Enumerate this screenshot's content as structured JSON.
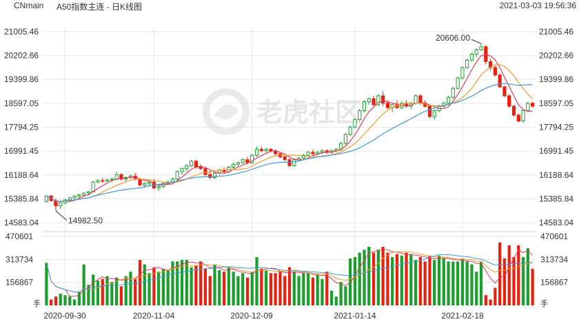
{
  "header": {
    "symbol": "CNmain",
    "title": "A50指数主连 - 日K线图",
    "datetime": "2021-03-03 19:56:36"
  },
  "watermark": {
    "logo_icon": "tiger-logo-icon",
    "text": "老虎社区"
  },
  "colors": {
    "up": "#1a9e2c",
    "down": "#e8210e",
    "ma5": "#e8375a",
    "ma10": "#f09a2c",
    "ma20": "#3d9ad6",
    "grid": "#e6e6e6",
    "text": "#333333"
  },
  "chart_data": [
    {
      "type": "candlestick",
      "y_ticks": [
        21005.46,
        20202.66,
        19399.86,
        18597.05,
        17794.25,
        16991.45,
        16188.64,
        15385.84,
        14583.04
      ],
      "ylim": [
        14583.04,
        21005.46
      ],
      "x_tick_labels": [
        "2020-09-30",
        "2020-11-04",
        "2020-12-09",
        "2021-01-14",
        "2021-02-18"
      ],
      "annotations": [
        {
          "label": "20606.00",
          "kind": "high"
        },
        {
          "label": "14982.50",
          "kind": "low"
        }
      ],
      "series": [
        {
          "name": "MA5",
          "values": []
        },
        {
          "name": "MA10",
          "values": []
        },
        {
          "name": "MA20",
          "values": []
        }
      ],
      "candles": [
        {
          "o": 15300,
          "h": 15500,
          "l": 15250,
          "c": 15480
        },
        {
          "o": 15480,
          "h": 15520,
          "l": 15300,
          "c": 15320
        },
        {
          "o": 15320,
          "h": 15400,
          "l": 14982.5,
          "c": 15150
        },
        {
          "o": 15150,
          "h": 15300,
          "l": 15050,
          "c": 15250
        },
        {
          "o": 15250,
          "h": 15380,
          "l": 15200,
          "c": 15350
        },
        {
          "o": 15350,
          "h": 15450,
          "l": 15300,
          "c": 15420
        },
        {
          "o": 15420,
          "h": 15500,
          "l": 15380,
          "c": 15480
        },
        {
          "o": 15480,
          "h": 15550,
          "l": 15400,
          "c": 15520
        },
        {
          "o": 15520,
          "h": 15600,
          "l": 15450,
          "c": 15580
        },
        {
          "o": 15580,
          "h": 15650,
          "l": 15500,
          "c": 15620
        },
        {
          "o": 15620,
          "h": 16000,
          "l": 15600,
          "c": 15950
        },
        {
          "o": 15950,
          "h": 16050,
          "l": 15900,
          "c": 16000
        },
        {
          "o": 16000,
          "h": 16080,
          "l": 15920,
          "c": 15980
        },
        {
          "o": 15980,
          "h": 16050,
          "l": 15950,
          "c": 16020
        },
        {
          "o": 16020,
          "h": 16100,
          "l": 15950,
          "c": 16050
        },
        {
          "o": 16050,
          "h": 16300,
          "l": 16000,
          "c": 16200
        },
        {
          "o": 16200,
          "h": 16250,
          "l": 16000,
          "c": 16050
        },
        {
          "o": 16050,
          "h": 16150,
          "l": 15950,
          "c": 16100
        },
        {
          "o": 16100,
          "h": 16200,
          "l": 16050,
          "c": 16150
        },
        {
          "o": 16150,
          "h": 16250,
          "l": 16000,
          "c": 16050
        },
        {
          "o": 16050,
          "h": 16100,
          "l": 15800,
          "c": 15850
        },
        {
          "o": 15850,
          "h": 15950,
          "l": 15750,
          "c": 15900
        },
        {
          "o": 15900,
          "h": 16000,
          "l": 15800,
          "c": 15950
        },
        {
          "o": 15950,
          "h": 16050,
          "l": 15700,
          "c": 15750
        },
        {
          "o": 15750,
          "h": 15850,
          "l": 15650,
          "c": 15800
        },
        {
          "o": 15800,
          "h": 15950,
          "l": 15750,
          "c": 15900
        },
        {
          "o": 15900,
          "h": 16000,
          "l": 15850,
          "c": 15950
        },
        {
          "o": 15950,
          "h": 16100,
          "l": 15900,
          "c": 16050
        },
        {
          "o": 16050,
          "h": 16350,
          "l": 16000,
          "c": 16300
        },
        {
          "o": 16300,
          "h": 16450,
          "l": 16200,
          "c": 16400
        },
        {
          "o": 16400,
          "h": 16550,
          "l": 16300,
          "c": 16500
        },
        {
          "o": 16500,
          "h": 16700,
          "l": 16450,
          "c": 16650
        },
        {
          "o": 16650,
          "h": 16700,
          "l": 16400,
          "c": 16450
        },
        {
          "o": 16450,
          "h": 16550,
          "l": 16350,
          "c": 16400
        },
        {
          "o": 16400,
          "h": 16450,
          "l": 16150,
          "c": 16200
        },
        {
          "o": 16200,
          "h": 16300,
          "l": 16050,
          "c": 16100
        },
        {
          "o": 16100,
          "h": 16300,
          "l": 16050,
          "c": 16250
        },
        {
          "o": 16250,
          "h": 16400,
          "l": 16200,
          "c": 16350
        },
        {
          "o": 16350,
          "h": 16450,
          "l": 16250,
          "c": 16300
        },
        {
          "o": 16300,
          "h": 16500,
          "l": 16250,
          "c": 16450
        },
        {
          "o": 16450,
          "h": 16600,
          "l": 16400,
          "c": 16550
        },
        {
          "o": 16550,
          "h": 16650,
          "l": 16450,
          "c": 16600
        },
        {
          "o": 16600,
          "h": 16750,
          "l": 16550,
          "c": 16700
        },
        {
          "o": 16700,
          "h": 16800,
          "l": 16550,
          "c": 16600
        },
        {
          "o": 16600,
          "h": 16900,
          "l": 16550,
          "c": 16850
        },
        {
          "o": 16850,
          "h": 17150,
          "l": 16800,
          "c": 17050
        },
        {
          "o": 17050,
          "h": 17150,
          "l": 16950,
          "c": 17000
        },
        {
          "o": 17000,
          "h": 17100,
          "l": 16900,
          "c": 17050
        },
        {
          "o": 17050,
          "h": 17100,
          "l": 16950,
          "c": 17000
        },
        {
          "o": 17000,
          "h": 17050,
          "l": 16850,
          "c": 16900
        },
        {
          "o": 16900,
          "h": 16950,
          "l": 16750,
          "c": 16800
        },
        {
          "o": 16800,
          "h": 16850,
          "l": 16650,
          "c": 16700
        },
        {
          "o": 16700,
          "h": 16750,
          "l": 16450,
          "c": 16500
        },
        {
          "o": 16500,
          "h": 16750,
          "l": 16450,
          "c": 16700
        },
        {
          "o": 16700,
          "h": 16800,
          "l": 16650,
          "c": 16750
        },
        {
          "o": 16750,
          "h": 16900,
          "l": 16700,
          "c": 16850
        },
        {
          "o": 16850,
          "h": 17000,
          "l": 16800,
          "c": 16950
        },
        {
          "o": 16950,
          "h": 17050,
          "l": 16850,
          "c": 16900
        },
        {
          "o": 16900,
          "h": 17000,
          "l": 16850,
          "c": 16950
        },
        {
          "o": 16950,
          "h": 17050,
          "l": 16900,
          "c": 17000
        },
        {
          "o": 17000,
          "h": 17050,
          "l": 16900,
          "c": 16950
        },
        {
          "o": 16950,
          "h": 17050,
          "l": 16900,
          "c": 17000
        },
        {
          "o": 17000,
          "h": 17100,
          "l": 16950,
          "c": 17050
        },
        {
          "o": 17050,
          "h": 17300,
          "l": 17000,
          "c": 17250
        },
        {
          "o": 17250,
          "h": 17600,
          "l": 17200,
          "c": 17550
        },
        {
          "o": 17550,
          "h": 17850,
          "l": 17500,
          "c": 17800
        },
        {
          "o": 17800,
          "h": 18100,
          "l": 17750,
          "c": 18050
        },
        {
          "o": 18050,
          "h": 18400,
          "l": 18000,
          "c": 18350
        },
        {
          "o": 18350,
          "h": 18700,
          "l": 18300,
          "c": 18650
        },
        {
          "o": 18650,
          "h": 18800,
          "l": 18550,
          "c": 18750
        },
        {
          "o": 18750,
          "h": 18850,
          "l": 18500,
          "c": 18550
        },
        {
          "o": 18550,
          "h": 18900,
          "l": 18500,
          "c": 18850
        },
        {
          "o": 18850,
          "h": 19000,
          "l": 18500,
          "c": 18600
        },
        {
          "o": 18600,
          "h": 18700,
          "l": 18400,
          "c": 18450
        },
        {
          "o": 18450,
          "h": 18600,
          "l": 18300,
          "c": 18550
        },
        {
          "o": 18550,
          "h": 18700,
          "l": 18400,
          "c": 18450
        },
        {
          "o": 18450,
          "h": 18650,
          "l": 18400,
          "c": 18600
        },
        {
          "o": 18600,
          "h": 18700,
          "l": 18450,
          "c": 18500
        },
        {
          "o": 18500,
          "h": 18650,
          "l": 18400,
          "c": 18600
        },
        {
          "o": 18600,
          "h": 18900,
          "l": 18550,
          "c": 18850
        },
        {
          "o": 18850,
          "h": 18900,
          "l": 18550,
          "c": 18600
        },
        {
          "o": 18600,
          "h": 18700,
          "l": 18450,
          "c": 18500
        },
        {
          "o": 18500,
          "h": 18550,
          "l": 18100,
          "c": 18150
        },
        {
          "o": 18150,
          "h": 18400,
          "l": 18050,
          "c": 18350
        },
        {
          "o": 18350,
          "h": 18550,
          "l": 18300,
          "c": 18500
        },
        {
          "o": 18500,
          "h": 18650,
          "l": 18450,
          "c": 18600
        },
        {
          "o": 18600,
          "h": 18850,
          "l": 18550,
          "c": 18800
        },
        {
          "o": 18800,
          "h": 19150,
          "l": 18750,
          "c": 19100
        },
        {
          "o": 19100,
          "h": 19500,
          "l": 19050,
          "c": 19450
        },
        {
          "o": 19450,
          "h": 19850,
          "l": 19400,
          "c": 19800
        },
        {
          "o": 19800,
          "h": 20100,
          "l": 19750,
          "c": 20050
        },
        {
          "o": 20050,
          "h": 20300,
          "l": 20000,
          "c": 20250
        },
        {
          "o": 20250,
          "h": 20450,
          "l": 20150,
          "c": 20400
        },
        {
          "o": 20400,
          "h": 20606,
          "l": 20350,
          "c": 20500
        },
        {
          "o": 20500,
          "h": 20550,
          "l": 19900,
          "c": 20000
        },
        {
          "o": 20000,
          "h": 20100,
          "l": 19700,
          "c": 19800
        },
        {
          "o": 19800,
          "h": 19850,
          "l": 19500,
          "c": 19550
        },
        {
          "o": 19550,
          "h": 19600,
          "l": 19100,
          "c": 19150
        },
        {
          "o": 19150,
          "h": 19200,
          "l": 18800,
          "c": 18850
        },
        {
          "o": 18850,
          "h": 18900,
          "l": 18450,
          "c": 18500
        },
        {
          "o": 18500,
          "h": 18550,
          "l": 18150,
          "c": 18200
        },
        {
          "o": 18200,
          "h": 18250,
          "l": 17950,
          "c": 18000
        },
        {
          "o": 18000,
          "h": 18400,
          "l": 17950,
          "c": 18350
        },
        {
          "o": 18350,
          "h": 18650,
          "l": 18300,
          "c": 18600
        },
        {
          "o": 18600,
          "h": 18650,
          "l": 18450,
          "c": 18500
        }
      ]
    },
    {
      "type": "bar",
      "name": "volume",
      "y_ticks": [
        470601,
        313734,
        156867
      ],
      "ylim": [
        0,
        470601
      ],
      "unit_label": "手",
      "series": [
        {
          "name": "MA5",
          "values": []
        },
        {
          "name": "MA10",
          "values": []
        }
      ],
      "values": [
        290000,
        40000,
        60000,
        80000,
        70000,
        60000,
        40000,
        90000,
        280000,
        140000,
        210000,
        170000,
        180000,
        200000,
        160000,
        190000,
        130000,
        200000,
        230000,
        180000,
        310000,
        280000,
        220000,
        260000,
        230000,
        250000,
        240000,
        300000,
        300000,
        310000,
        310000,
        260000,
        270000,
        300000,
        250000,
        200000,
        280000,
        240000,
        230000,
        260000,
        230000,
        200000,
        220000,
        190000,
        230000,
        330000,
        250000,
        240000,
        220000,
        220000,
        230000,
        200000,
        260000,
        230000,
        200000,
        220000,
        220000,
        190000,
        210000,
        180000,
        230000,
        100000,
        60000,
        160000,
        130000,
        320000,
        330000,
        360000,
        380000,
        400000,
        360000,
        380000,
        400000,
        360000,
        330000,
        350000,
        340000,
        360000,
        350000,
        310000,
        330000,
        300000,
        340000,
        310000,
        340000,
        320000,
        300000,
        300000,
        300000,
        320000,
        300000,
        280000,
        230000,
        300000,
        70000,
        40000,
        120000,
        430000,
        320000,
        410000,
        330000,
        410000,
        330000,
        390000,
        250000
      ]
    }
  ]
}
